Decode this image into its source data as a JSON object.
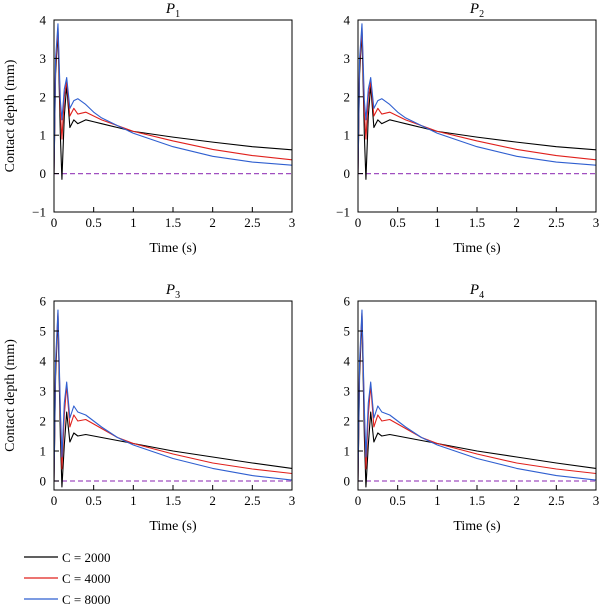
{
  "chart_data": [
    {
      "type": "line",
      "title": "P",
      "title_subscript": "1",
      "xlabel": "Time (s)",
      "ylabel": "Contact depth (mm)",
      "xlim": [
        0,
        3
      ],
      "ylim": [
        -1,
        4
      ],
      "xticks": [
        0,
        0.5,
        1,
        1.5,
        2,
        2.5,
        3
      ],
      "xtick_labels": [
        "0",
        "0.5",
        "1",
        "1.5",
        "2",
        "2.5",
        "3"
      ],
      "yticks": [
        -1,
        0,
        1,
        2,
        3,
        4
      ],
      "ytick_labels": [
        "−1",
        "0",
        "1",
        "2",
        "3",
        "4"
      ],
      "grid": false,
      "reference_line": {
        "y": 0,
        "style": "dashed",
        "color": "#a04fc0"
      },
      "series": [
        {
          "name": "C = 2000",
          "color": "#000000",
          "x": [
            0,
            0.02,
            0.05,
            0.08,
            0.1,
            0.13,
            0.16,
            0.2,
            0.25,
            0.3,
            0.4,
            0.5,
            0.6,
            0.8,
            1.0,
            1.5,
            2.0,
            2.5,
            3.0
          ],
          "y": [
            0,
            2.6,
            3.7,
            1.0,
            -0.15,
            1.5,
            2.3,
            1.2,
            1.4,
            1.3,
            1.4,
            1.35,
            1.3,
            1.2,
            1.1,
            0.95,
            0.82,
            0.7,
            0.62
          ]
        },
        {
          "name": "C = 4000",
          "color": "#e0201c",
          "x": [
            0,
            0.02,
            0.05,
            0.08,
            0.1,
            0.13,
            0.16,
            0.2,
            0.25,
            0.3,
            0.4,
            0.5,
            0.6,
            0.8,
            1.0,
            1.5,
            2.0,
            2.5,
            3.0
          ],
          "y": [
            0,
            2.8,
            3.8,
            1.6,
            0.9,
            2.0,
            2.4,
            1.5,
            1.7,
            1.55,
            1.6,
            1.5,
            1.4,
            1.25,
            1.1,
            0.85,
            0.63,
            0.47,
            0.36
          ]
        },
        {
          "name": "C = 8000",
          "color": "#2f5fd0",
          "x": [
            0,
            0.02,
            0.05,
            0.08,
            0.1,
            0.13,
            0.16,
            0.2,
            0.25,
            0.3,
            0.4,
            0.5,
            0.6,
            0.8,
            1.0,
            1.5,
            2.0,
            2.5,
            3.0
          ],
          "y": [
            0,
            3.0,
            3.9,
            1.9,
            1.4,
            2.2,
            2.5,
            1.7,
            1.9,
            1.95,
            1.8,
            1.6,
            1.45,
            1.25,
            1.05,
            0.7,
            0.45,
            0.3,
            0.22
          ]
        }
      ]
    },
    {
      "type": "line",
      "title": "P",
      "title_subscript": "2",
      "xlabel": "Time (s)",
      "ylabel": "",
      "xlim": [
        0,
        3
      ],
      "ylim": [
        -1,
        4
      ],
      "xticks": [
        0,
        0.5,
        1,
        1.5,
        2,
        2.5,
        3
      ],
      "xtick_labels": [
        "0",
        "0.5",
        "1",
        "1.5",
        "2",
        "2.5",
        "3"
      ],
      "yticks": [
        -1,
        0,
        1,
        2,
        3,
        4
      ],
      "ytick_labels": [
        "−1",
        "0",
        "1",
        "2",
        "3",
        "4"
      ],
      "grid": false,
      "reference_line": {
        "y": 0,
        "style": "dashed",
        "color": "#a04fc0"
      },
      "series": [
        {
          "name": "C = 2000",
          "color": "#000000",
          "x": [
            0,
            0.02,
            0.05,
            0.08,
            0.1,
            0.13,
            0.16,
            0.2,
            0.25,
            0.3,
            0.4,
            0.5,
            0.6,
            0.8,
            1.0,
            1.5,
            2.0,
            2.5,
            3.0
          ],
          "y": [
            0,
            2.6,
            3.7,
            1.0,
            -0.15,
            1.5,
            2.3,
            1.2,
            1.4,
            1.3,
            1.4,
            1.35,
            1.3,
            1.2,
            1.1,
            0.95,
            0.82,
            0.7,
            0.62
          ]
        },
        {
          "name": "C = 4000",
          "color": "#e0201c",
          "x": [
            0,
            0.02,
            0.05,
            0.08,
            0.1,
            0.13,
            0.16,
            0.2,
            0.25,
            0.3,
            0.4,
            0.5,
            0.6,
            0.8,
            1.0,
            1.5,
            2.0,
            2.5,
            3.0
          ],
          "y": [
            0,
            2.8,
            3.8,
            1.6,
            0.9,
            2.0,
            2.4,
            1.5,
            1.7,
            1.55,
            1.6,
            1.5,
            1.4,
            1.25,
            1.1,
            0.85,
            0.63,
            0.47,
            0.36
          ]
        },
        {
          "name": "C = 8000",
          "color": "#2f5fd0",
          "x": [
            0,
            0.02,
            0.05,
            0.08,
            0.1,
            0.13,
            0.16,
            0.2,
            0.25,
            0.3,
            0.4,
            0.5,
            0.6,
            0.8,
            1.0,
            1.5,
            2.0,
            2.5,
            3.0
          ],
          "y": [
            0,
            3.0,
            3.9,
            1.9,
            1.4,
            2.2,
            2.5,
            1.7,
            1.9,
            1.95,
            1.8,
            1.6,
            1.45,
            1.25,
            1.05,
            0.7,
            0.45,
            0.3,
            0.22
          ]
        }
      ]
    },
    {
      "type": "line",
      "title": "P",
      "title_subscript": "3",
      "xlabel": "Time (s)",
      "ylabel": "Contact depth (mm)",
      "xlim": [
        0,
        3
      ],
      "ylim": [
        -0.3,
        6
      ],
      "xticks": [
        0,
        0.5,
        1,
        1.5,
        2,
        2.5,
        3
      ],
      "xtick_labels": [
        "0",
        "0.5",
        "1",
        "1.5",
        "2",
        "2.5",
        "3"
      ],
      "yticks": [
        0,
        1,
        2,
        3,
        4,
        5,
        6
      ],
      "ytick_labels": [
        "0",
        "1",
        "2",
        "3",
        "4",
        "5",
        "6"
      ],
      "grid": false,
      "reference_line": {
        "y": 0,
        "style": "dashed",
        "color": "#a04fc0"
      },
      "series": [
        {
          "name": "C = 2000",
          "color": "#000000",
          "x": [
            0,
            0.02,
            0.05,
            0.08,
            0.1,
            0.13,
            0.16,
            0.2,
            0.25,
            0.3,
            0.4,
            0.5,
            0.6,
            0.8,
            1.0,
            1.5,
            2.0,
            2.5,
            3.0
          ],
          "y": [
            0,
            3.5,
            5.5,
            1.5,
            -0.2,
            1.2,
            2.3,
            1.3,
            1.6,
            1.5,
            1.55,
            1.5,
            1.45,
            1.35,
            1.25,
            1.0,
            0.8,
            0.6,
            0.42
          ]
        },
        {
          "name": "C = 4000",
          "color": "#e0201c",
          "x": [
            0,
            0.02,
            0.05,
            0.08,
            0.1,
            0.13,
            0.16,
            0.2,
            0.25,
            0.3,
            0.4,
            0.5,
            0.6,
            0.8,
            1.0,
            1.5,
            2.0,
            2.5,
            3.0
          ],
          "y": [
            0,
            3.8,
            5.6,
            2.2,
            0.4,
            2.2,
            3.2,
            1.8,
            2.2,
            2.0,
            2.05,
            1.9,
            1.75,
            1.45,
            1.25,
            0.9,
            0.6,
            0.4,
            0.25
          ]
        },
        {
          "name": "C = 8000",
          "color": "#2f5fd0",
          "x": [
            0,
            0.02,
            0.05,
            0.08,
            0.1,
            0.13,
            0.16,
            0.2,
            0.25,
            0.3,
            0.4,
            0.5,
            0.6,
            0.8,
            1.0,
            1.5,
            2.0,
            2.5,
            3.0
          ],
          "y": [
            0,
            4.0,
            5.7,
            2.4,
            0.8,
            2.6,
            3.3,
            2.1,
            2.5,
            2.3,
            2.2,
            2.0,
            1.8,
            1.45,
            1.2,
            0.75,
            0.42,
            0.18,
            0.03
          ]
        }
      ]
    },
    {
      "type": "line",
      "title": "P",
      "title_subscript": "4",
      "xlabel": "Time (s)",
      "ylabel": "",
      "xlim": [
        0,
        3
      ],
      "ylim": [
        -0.3,
        6
      ],
      "xticks": [
        0,
        0.5,
        1,
        1.5,
        2,
        2.5,
        3
      ],
      "xtick_labels": [
        "0",
        "0.5",
        "1",
        "1.5",
        "2",
        "2.5",
        "3"
      ],
      "yticks": [
        0,
        1,
        2,
        3,
        4,
        5,
        6
      ],
      "ytick_labels": [
        "0",
        "1",
        "2",
        "3",
        "4",
        "5",
        "6"
      ],
      "grid": false,
      "reference_line": {
        "y": 0,
        "style": "dashed",
        "color": "#a04fc0"
      },
      "series": [
        {
          "name": "C = 2000",
          "color": "#000000",
          "x": [
            0,
            0.02,
            0.05,
            0.08,
            0.1,
            0.13,
            0.16,
            0.2,
            0.25,
            0.3,
            0.4,
            0.5,
            0.6,
            0.8,
            1.0,
            1.5,
            2.0,
            2.5,
            3.0
          ],
          "y": [
            0,
            3.5,
            5.5,
            1.5,
            -0.2,
            1.2,
            2.3,
            1.3,
            1.6,
            1.5,
            1.55,
            1.5,
            1.45,
            1.35,
            1.25,
            1.0,
            0.8,
            0.6,
            0.42
          ]
        },
        {
          "name": "C = 4000",
          "color": "#e0201c",
          "x": [
            0,
            0.02,
            0.05,
            0.08,
            0.1,
            0.13,
            0.16,
            0.2,
            0.25,
            0.3,
            0.4,
            0.5,
            0.6,
            0.8,
            1.0,
            1.5,
            2.0,
            2.5,
            3.0
          ],
          "y": [
            0,
            3.8,
            5.6,
            2.2,
            0.4,
            2.2,
            3.2,
            1.8,
            2.2,
            2.0,
            2.05,
            1.9,
            1.75,
            1.45,
            1.25,
            0.9,
            0.6,
            0.4,
            0.25
          ]
        },
        {
          "name": "C = 8000",
          "color": "#2f5fd0",
          "x": [
            0,
            0.02,
            0.05,
            0.08,
            0.1,
            0.13,
            0.16,
            0.2,
            0.25,
            0.3,
            0.4,
            0.5,
            0.6,
            0.8,
            1.0,
            1.5,
            2.0,
            2.5,
            3.0
          ],
          "y": [
            0,
            4.0,
            5.7,
            2.4,
            0.8,
            2.6,
            3.3,
            2.1,
            2.5,
            2.3,
            2.2,
            2.0,
            1.8,
            1.45,
            1.2,
            0.75,
            0.42,
            0.18,
            0.03
          ]
        }
      ]
    }
  ],
  "legend": {
    "placement": "bottom-left",
    "items": [
      {
        "label": "C = 2000",
        "color": "#000000"
      },
      {
        "label": "C = 4000",
        "color": "#e0201c"
      },
      {
        "label": "C = 8000",
        "color": "#2f5fd0"
      }
    ]
  }
}
